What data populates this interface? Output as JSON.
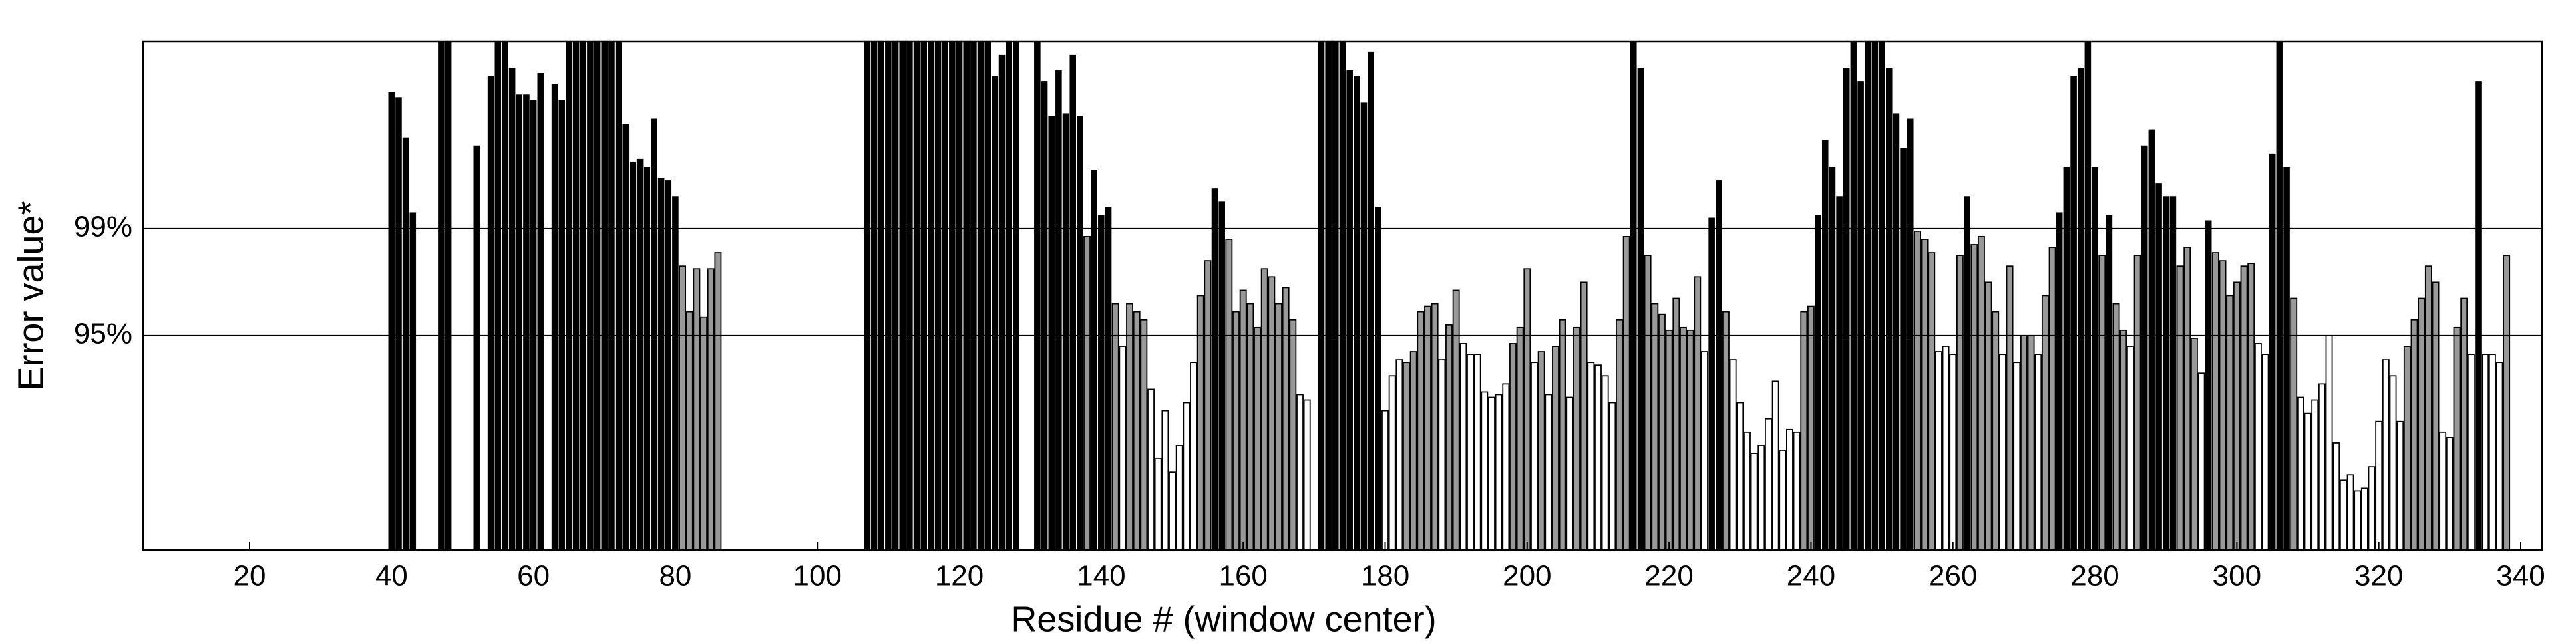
{
  "chart_data": {
    "type": "bar",
    "xlabel": "Residue # (window center)",
    "ylabel": "Error value*",
    "xlim": [
      5,
      343
    ],
    "xticks": [
      20,
      40,
      60,
      80,
      100,
      120,
      140,
      160,
      180,
      200,
      220,
      240,
      260,
      280,
      300,
      320,
      340
    ],
    "ylim": [
      87,
      106
    ],
    "yticks": [
      {
        "value": 95,
        "label": "95%"
      },
      {
        "value": 99,
        "label": "99%"
      }
    ],
    "grid": true,
    "x": [
      40,
      41,
      42,
      43,
      47,
      48,
      52,
      54,
      55,
      56,
      57,
      58,
      59,
      60,
      61,
      63,
      64,
      65,
      66,
      67,
      68,
      69,
      70,
      71,
      72,
      73,
      74,
      75,
      76,
      77,
      78,
      79,
      80,
      81,
      82,
      83,
      84,
      85,
      86,
      107,
      108,
      109,
      110,
      111,
      112,
      113,
      114,
      115,
      116,
      117,
      118,
      119,
      120,
      121,
      122,
      123,
      124,
      125,
      126,
      127,
      128,
      131,
      132,
      133,
      134,
      135,
      136,
      137,
      138,
      139,
      140,
      141,
      142,
      143,
      144,
      145,
      146,
      147,
      148,
      149,
      150,
      151,
      152,
      153,
      154,
      155,
      156,
      157,
      158,
      159,
      160,
      161,
      162,
      163,
      164,
      165,
      166,
      167,
      168,
      169,
      171,
      172,
      173,
      174,
      175,
      176,
      177,
      178,
      179,
      180,
      181,
      182,
      183,
      184,
      185,
      186,
      187,
      188,
      189,
      190,
      191,
      192,
      193,
      194,
      195,
      196,
      197,
      198,
      199,
      200,
      201,
      202,
      203,
      204,
      205,
      206,
      207,
      208,
      209,
      210,
      211,
      212,
      213,
      214,
      215,
      216,
      217,
      218,
      219,
      220,
      221,
      222,
      223,
      224,
      225,
      226,
      227,
      228,
      229,
      230,
      231,
      232,
      233,
      234,
      235,
      236,
      237,
      238,
      239,
      240,
      241,
      242,
      243,
      244,
      245,
      246,
      247,
      248,
      249,
      250,
      251,
      252,
      253,
      254,
      255,
      256,
      257,
      258,
      259,
      260,
      261,
      262,
      263,
      264,
      265,
      266,
      267,
      268,
      269,
      270,
      271,
      272,
      273,
      274,
      275,
      276,
      277,
      278,
      279,
      280,
      281,
      282,
      283,
      284,
      285,
      286,
      287,
      288,
      289,
      290,
      291,
      292,
      293,
      294,
      295,
      296,
      297,
      298,
      299,
      300,
      301,
      302,
      303,
      304,
      305,
      306,
      307,
      308,
      309,
      310,
      311,
      312,
      313,
      314,
      315,
      316,
      317,
      318,
      319,
      320,
      321,
      322,
      323,
      324,
      325,
      326,
      327,
      328,
      329,
      330,
      331,
      332,
      333,
      334,
      335,
      336,
      337,
      338
    ],
    "values": [
      104.1,
      103.9,
      102.4,
      99.6,
      106,
      106,
      102.1,
      104.7,
      106,
      106,
      105,
      104,
      104,
      103.8,
      104.8,
      104.4,
      103.8,
      106,
      106,
      106,
      106,
      106,
      106,
      106,
      106,
      102.9,
      101.5,
      101.6,
      101.3,
      103.1,
      100.9,
      100.8,
      100.2,
      97.6,
      95.9,
      97.5,
      95.7,
      97.5,
      98.1,
      106,
      106,
      106,
      106,
      106,
      106,
      106,
      106,
      106,
      106,
      106,
      106,
      106,
      106,
      106,
      106,
      106,
      106,
      104.7,
      105.5,
      106,
      106,
      106,
      104.5,
      103.2,
      104.9,
      103.3,
      105.5,
      103.2,
      98.7,
      101.2,
      99.5,
      99.8,
      96.2,
      94.6,
      96.2,
      95.9,
      95.6,
      93.0,
      90.4,
      92.2,
      89.9,
      90.9,
      92.5,
      94.0,
      96.5,
      97.8,
      100.5,
      100.0,
      98.6,
      95.9,
      96.7,
      96.2,
      95.3,
      97.5,
      97.2,
      96.2,
      96.8,
      95.6,
      92.8,
      92.6,
      106,
      106,
      106,
      106,
      104.9,
      104.7,
      103.7,
      105.6,
      99.8,
      92.2,
      93.5,
      94.1,
      94.0,
      94.4,
      95.9,
      96.1,
      96.2,
      94.1,
      95.4,
      96.7,
      94.7,
      94.3,
      94.3,
      92.9,
      92.7,
      92.8,
      93.2,
      94.7,
      95.3,
      97.5,
      94.0,
      94.4,
      92.8,
      94.6,
      95.6,
      92.7,
      95.3,
      97.0,
      94.0,
      93.9,
      93.5,
      92.5,
      95.6,
      98.7,
      106,
      105,
      98.0,
      96.2,
      95.8,
      95.2,
      96.4,
      95.3,
      95.2,
      97.2,
      94.4,
      99.4,
      100.8,
      95.9,
      94.1,
      92.5,
      91.4,
      90.6,
      90.9,
      91.9,
      93.3,
      90.7,
      91.5,
      91.4,
      95.9,
      96.1,
      99.5,
      102.3,
      101.3,
      100.2,
      105.0,
      106,
      104.5,
      106,
      106,
      106,
      105.0,
      103.3,
      102.0,
      103.1,
      98.9,
      98.6,
      98.1,
      94.4,
      94.6,
      94.3,
      98.0,
      100.2,
      98.4,
      98.7,
      97.0,
      95.9,
      94.3,
      97.6,
      94.0,
      95.0,
      95.0,
      94.3,
      96.5,
      98.3,
      99.6,
      101.3,
      104.7,
      105.0,
      106,
      101.3,
      98.0,
      99.5,
      96.2,
      95.2,
      94.6,
      98.0,
      102.1,
      102.7,
      100.7,
      100.2,
      100.2,
      97.6,
      98.3,
      94.9,
      93.6,
      99.3,
      98.1,
      97.8,
      96.5,
      97.0,
      97.6,
      97.7,
      94.7,
      94.3,
      101.8,
      106,
      101.3,
      96.4,
      92.7,
      92.1,
      92.6,
      93.2,
      95.0,
      91.0,
      89.6,
      89.8,
      89.2,
      89.3,
      90.1,
      91.8,
      94.1,
      93.5,
      91.8,
      94.6,
      95.6,
      96.4,
      97.6,
      97.0,
      91.4,
      91.2,
      95.3,
      96.4,
      94.3,
      104.5,
      94.3,
      94.3,
      94.0,
      98.0
    ],
    "colors": [
      "#000",
      "#000",
      "#000",
      "#000",
      "#000",
      "#000",
      "#000",
      "#000",
      "#000",
      "#000",
      "#000",
      "#000",
      "#000",
      "#000",
      "#000",
      "#000",
      "#000",
      "#000",
      "#000",
      "#000",
      "#000",
      "#000",
      "#000",
      "#000",
      "#000",
      "#000",
      "#000",
      "#000",
      "#000",
      "#000",
      "#000",
      "#000",
      "#000",
      "#999",
      "#999",
      "#999",
      "#999",
      "#999",
      "#999",
      "#000",
      "#000",
      "#000",
      "#000",
      "#000",
      "#000",
      "#000",
      "#000",
      "#000",
      "#000",
      "#000",
      "#000",
      "#000",
      "#000",
      "#000",
      "#000",
      "#000",
      "#000",
      "#000",
      "#000",
      "#000",
      "#000",
      "#000",
      "#000",
      "#000",
      "#000",
      "#000",
      "#000",
      "#000",
      "#999",
      "#000",
      "#000",
      "#000",
      "#999",
      "#fff",
      "#999",
      "#999",
      "#999",
      "#fff",
      "#fff",
      "#fff",
      "#fff",
      "#fff",
      "#fff",
      "#fff",
      "#999",
      "#999",
      "#000",
      "#000",
      "#999",
      "#999",
      "#999",
      "#999",
      "#999",
      "#999",
      "#999",
      "#999",
      "#999",
      "#999",
      "#fff",
      "#fff",
      "#000",
      "#000",
      "#000",
      "#000",
      "#000",
      "#000",
      "#000",
      "#000",
      "#000",
      "#fff",
      "#fff",
      "#fff",
      "#999",
      "#999",
      "#999",
      "#999",
      "#999",
      "#fff",
      "#999",
      "#999",
      "#fff",
      "#fff",
      "#fff",
      "#fff",
      "#fff",
      "#fff",
      "#fff",
      "#999",
      "#999",
      "#999",
      "#fff",
      "#999",
      "#fff",
      "#999",
      "#999",
      "#fff",
      "#999",
      "#999",
      "#fff",
      "#fff",
      "#fff",
      "#fff",
      "#999",
      "#999",
      "#000",
      "#000",
      "#999",
      "#999",
      "#999",
      "#999",
      "#999",
      "#999",
      "#999",
      "#999",
      "#fff",
      "#000",
      "#000",
      "#999",
      "#fff",
      "#fff",
      "#fff",
      "#fff",
      "#fff",
      "#fff",
      "#fff",
      "#fff",
      "#fff",
      "#fff",
      "#999",
      "#999",
      "#000",
      "#000",
      "#000",
      "#000",
      "#000",
      "#000",
      "#000",
      "#000",
      "#000",
      "#000",
      "#000",
      "#000",
      "#000",
      "#000",
      "#999",
      "#999",
      "#999",
      "#fff",
      "#fff",
      "#fff",
      "#999",
      "#000",
      "#999",
      "#999",
      "#999",
      "#999",
      "#fff",
      "#999",
      "#fff",
      "#999",
      "#999",
      "#fff",
      "#999",
      "#999",
      "#000",
      "#000",
      "#000",
      "#000",
      "#000",
      "#000",
      "#999",
      "#000",
      "#999",
      "#999",
      "#fff",
      "#999",
      "#000",
      "#000",
      "#000",
      "#000",
      "#000",
      "#999",
      "#999",
      "#999",
      "#fff",
      "#000",
      "#999",
      "#999",
      "#999",
      "#999",
      "#999",
      "#999",
      "#fff",
      "#fff",
      "#000",
      "#000",
      "#000",
      "#999",
      "#fff",
      "#fff",
      "#fff",
      "#fff",
      "#fff",
      "#fff",
      "#fff",
      "#fff",
      "#fff",
      "#fff",
      "#fff",
      "#fff",
      "#fff",
      "#fff",
      "#fff",
      "#999",
      "#999",
      "#999",
      "#999",
      "#999",
      "#fff",
      "#fff",
      "#999",
      "#999",
      "#fff",
      "#000",
      "#fff",
      "#fff",
      "#fff",
      "#999"
    ]
  }
}
